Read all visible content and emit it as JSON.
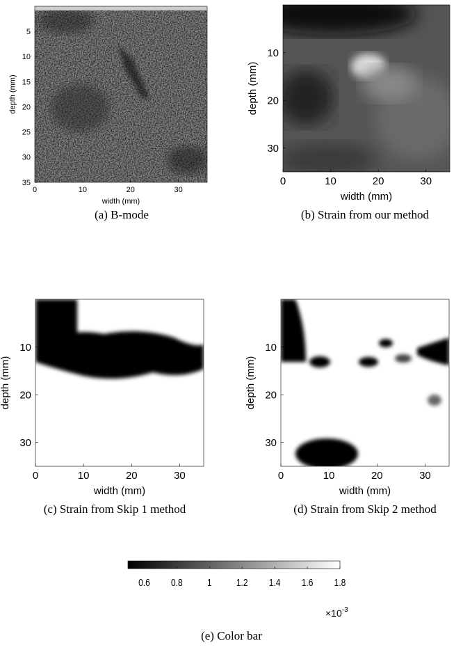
{
  "panels": [
    {
      "caption": "(a) B-mode",
      "xlabel": "width (mm)",
      "ylabel": "depth (mm)",
      "xlim": [
        0,
        36
      ],
      "ylim": [
        0,
        35
      ],
      "xticks": [
        0,
        10,
        20,
        30
      ],
      "yticks": [
        5,
        10,
        15,
        20,
        25,
        30,
        35
      ]
    },
    {
      "caption": "(b) Strain from our method",
      "xlabel": "width (mm)",
      "ylabel": "depth (mm)",
      "xlim": [
        0,
        35
      ],
      "ylim": [
        0,
        35
      ],
      "xticks": [
        0,
        10,
        20,
        30
      ],
      "yticks": [
        10,
        20,
        30
      ]
    },
    {
      "caption": "(c) Strain from Skip 1 method",
      "xlabel": "width (mm)",
      "ylabel": "depth (mm)",
      "xlim": [
        0,
        35
      ],
      "ylim": [
        0,
        35
      ],
      "xticks": [
        0,
        10,
        20,
        30
      ],
      "yticks": [
        10,
        20,
        30
      ]
    },
    {
      "caption": "(d) Strain from Skip 2 method",
      "xlabel": "width (mm)",
      "ylabel": "depth (mm)",
      "xlim": [
        0,
        35
      ],
      "ylim": [
        0,
        35
      ],
      "xticks": [
        0,
        10,
        20,
        30
      ],
      "yticks": [
        10,
        20,
        30
      ]
    }
  ],
  "colorbar": {
    "caption": "(e) Color bar",
    "lim": [
      0.5,
      1.8
    ],
    "ticks": [
      0.6,
      0.8,
      1,
      1.2,
      1.4,
      1.6,
      1.8
    ],
    "multiplier": "×10",
    "exponent": "-3"
  }
}
